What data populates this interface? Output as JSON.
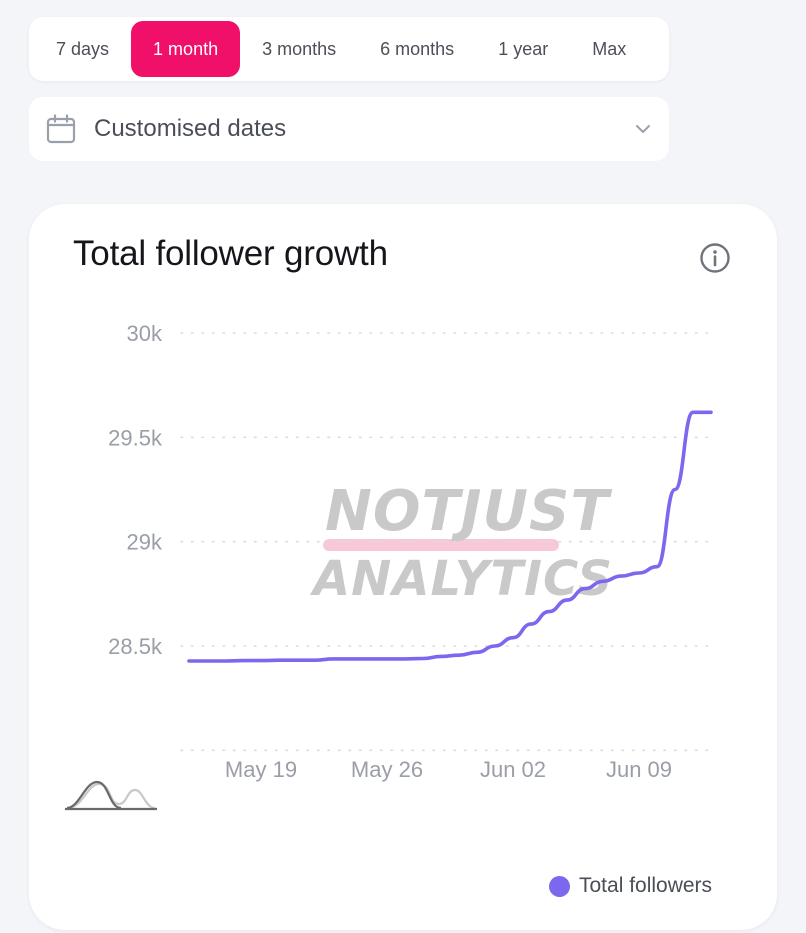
{
  "range_selector": {
    "options": [
      "7 days",
      "1 month",
      "3 months",
      "6 months",
      "1 year",
      "Max"
    ],
    "selected": "1 month"
  },
  "date_select": {
    "label": "Customised dates",
    "icon": "calendar-icon"
  },
  "card": {
    "title": "Total follower growth",
    "info_icon": "info-icon"
  },
  "watermark": {
    "line1": "NOTJUST",
    "line2": "ANALYTICS"
  },
  "legend": {
    "label": "Total followers"
  },
  "colors": {
    "accent": "#f0106a",
    "series": "#7b68ee"
  },
  "chart_data": {
    "type": "line",
    "y_ticks": [
      "28.5k",
      "29k",
      "29.5k",
      "30k"
    ],
    "y_tick_values": [
      28500,
      29000,
      29500,
      30000
    ],
    "ylim": [
      28000,
      30000
    ],
    "x_ticks": [
      "May 19",
      "May 26",
      "Jun 02",
      "Jun 09"
    ],
    "x_tick_dates": [
      "2024-05-19",
      "2024-05-26",
      "2024-06-02",
      "2024-06-09"
    ],
    "grid": true,
    "legend_position": "bottom-right",
    "series": [
      {
        "name": "Total followers",
        "x": [
          "2024-05-15",
          "2024-05-16",
          "2024-05-17",
          "2024-05-18",
          "2024-05-19",
          "2024-05-20",
          "2024-05-21",
          "2024-05-22",
          "2024-05-23",
          "2024-05-24",
          "2024-05-25",
          "2024-05-26",
          "2024-05-27",
          "2024-05-28",
          "2024-05-29",
          "2024-05-30",
          "2024-05-31",
          "2024-06-01",
          "2024-06-02",
          "2024-06-03",
          "2024-06-04",
          "2024-06-05",
          "2024-06-06",
          "2024-06-07",
          "2024-06-08",
          "2024-06-09",
          "2024-06-10",
          "2024-06-11",
          "2024-06-12",
          "2024-06-13"
        ],
        "y": [
          28428,
          28428,
          28428,
          28430,
          28430,
          28432,
          28432,
          28432,
          28438,
          28438,
          28438,
          28438,
          28438,
          28440,
          28450,
          28456,
          28470,
          28500,
          28540,
          28605,
          28665,
          28720,
          28775,
          28810,
          28835,
          28850,
          28880,
          29250,
          29620,
          29620
        ]
      }
    ]
  }
}
